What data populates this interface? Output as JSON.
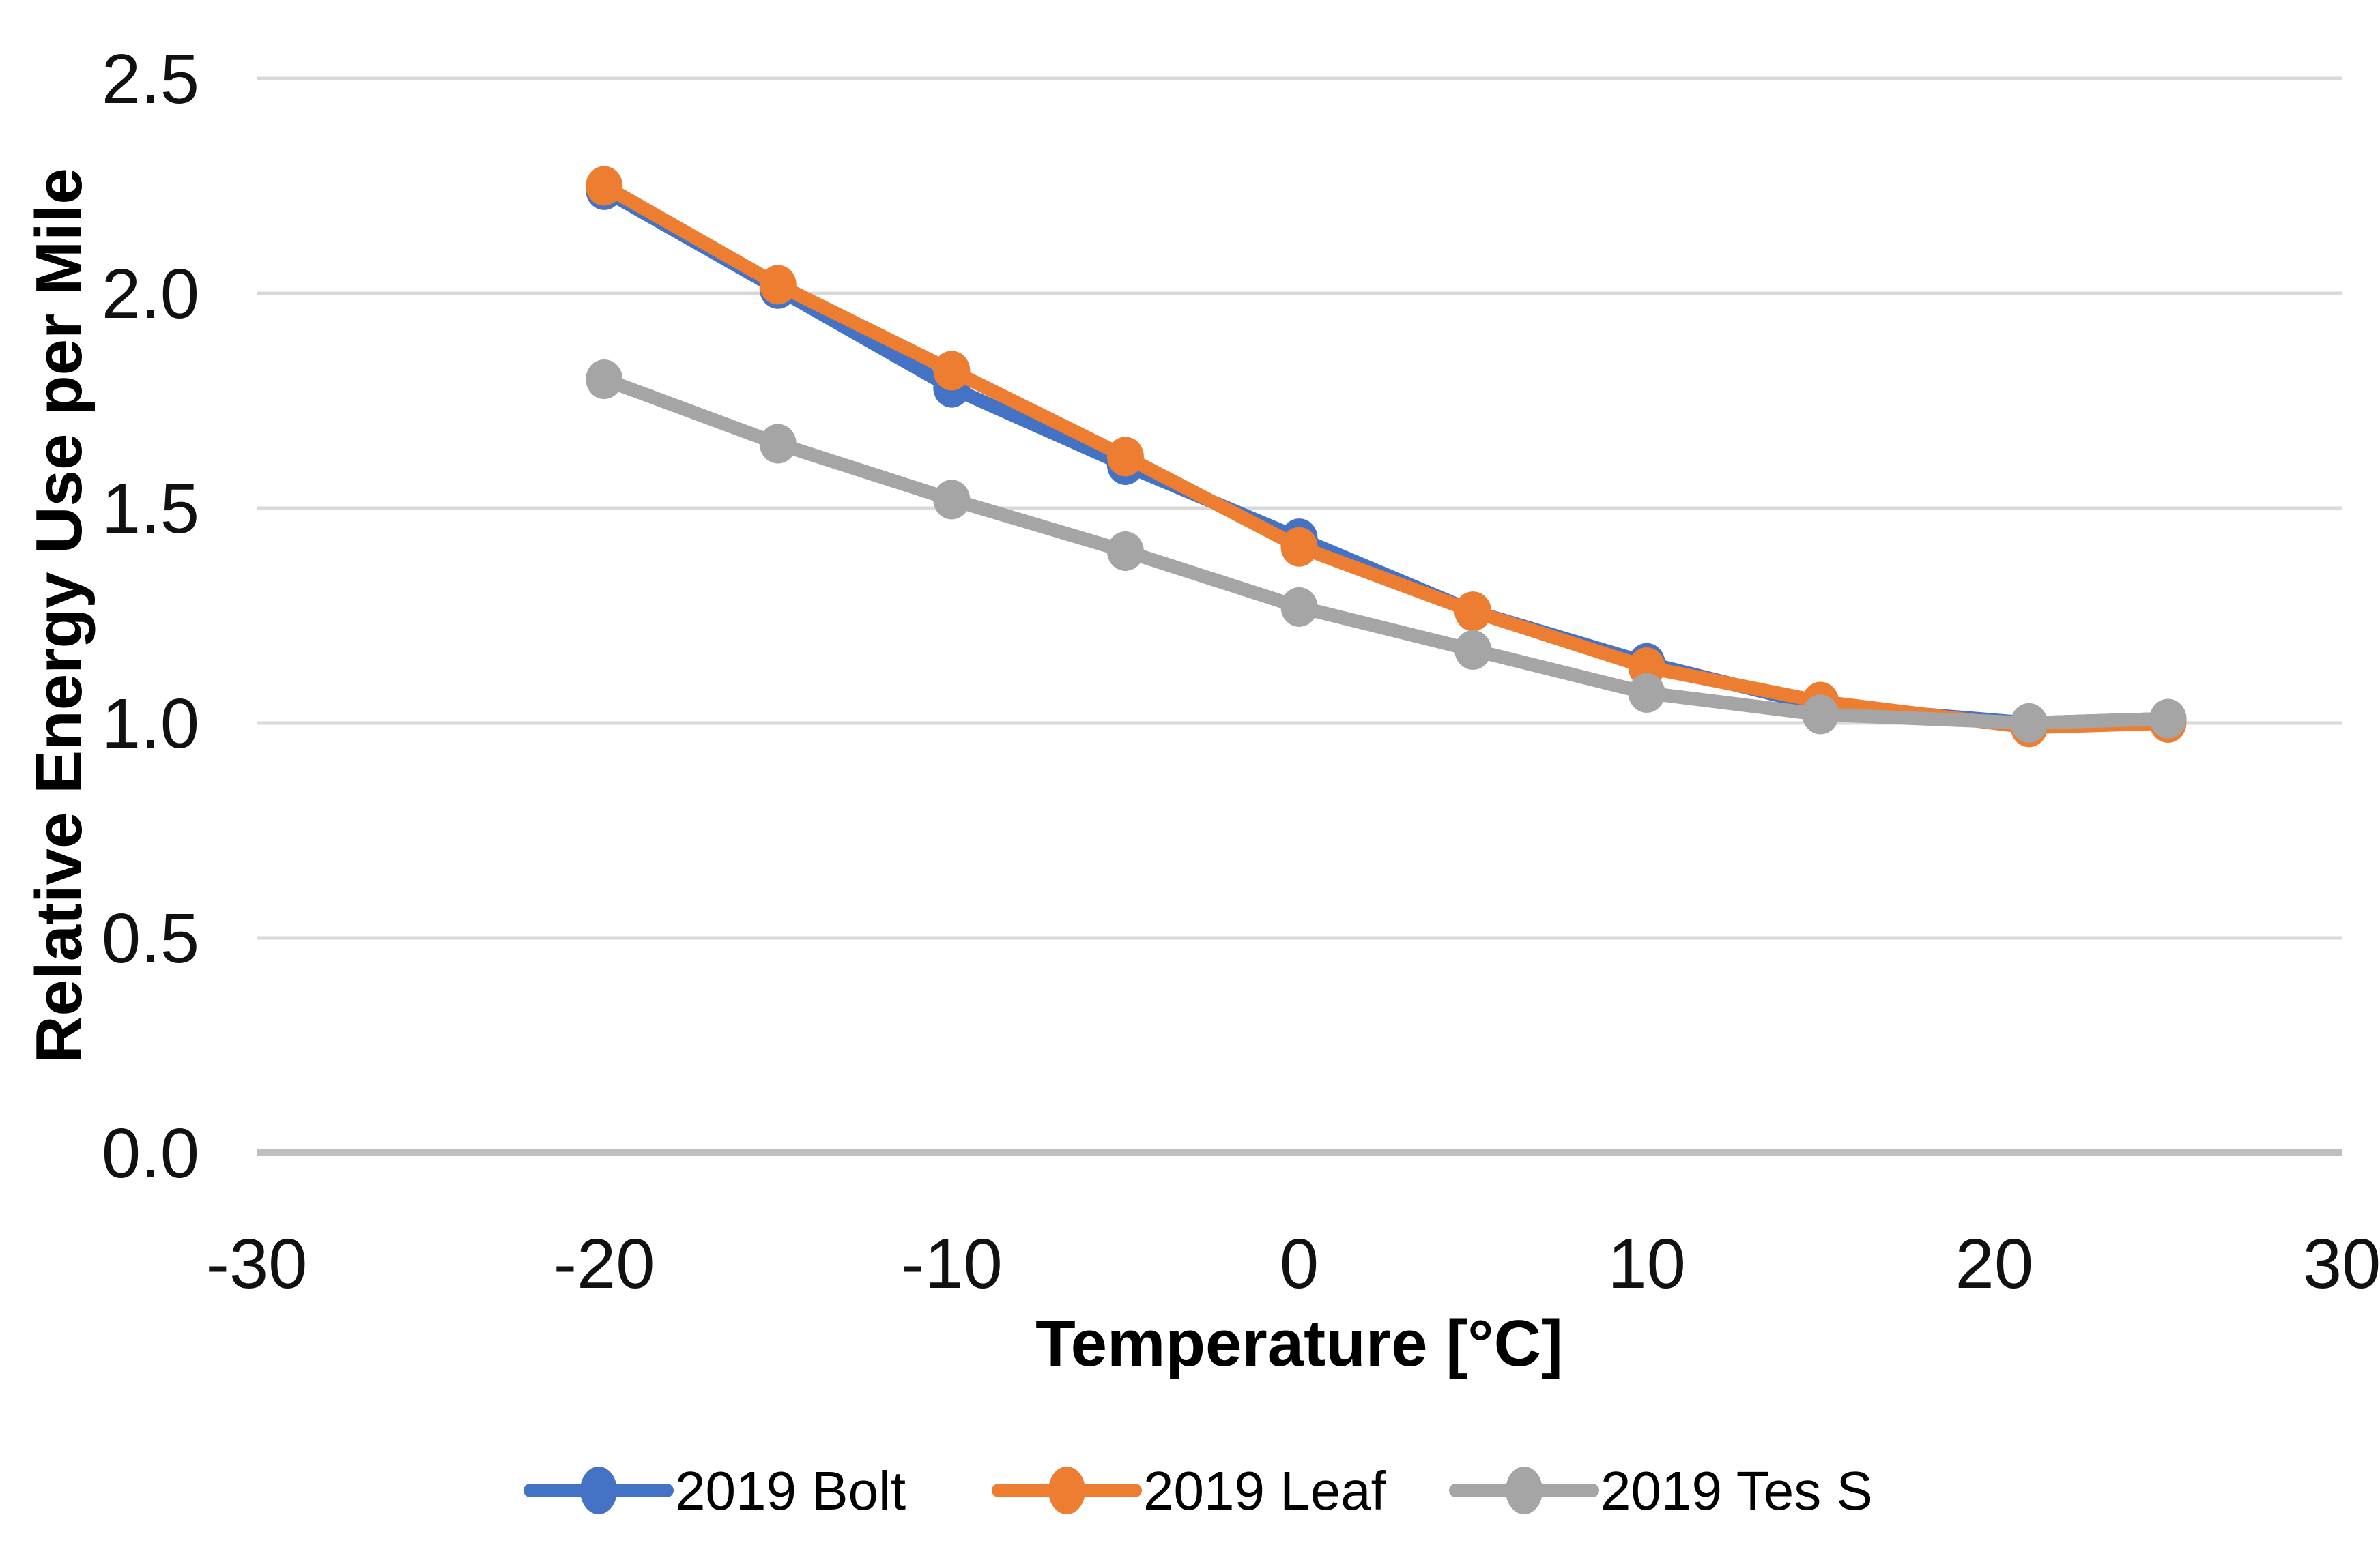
{
  "chart_data": {
    "type": "line",
    "title": "",
    "x": [
      -20,
      -15,
      -10,
      -5,
      0,
      5,
      10,
      15,
      21,
      25
    ],
    "series": [
      {
        "name": "2019 Bolt",
        "color": "#4472C4",
        "values": [
          2.24,
          2.01,
          1.78,
          1.6,
          1.43,
          1.26,
          1.14,
          1.04,
          1.0,
          1.01
        ]
      },
      {
        "name": "2019 Leaf",
        "color": "#ED7D31",
        "values": [
          2.25,
          2.02,
          1.82,
          1.62,
          1.41,
          1.26,
          1.13,
          1.05,
          0.99,
          1.0
        ]
      },
      {
        "name": "2019 Tes S",
        "color": "#A5A5A5",
        "values": [
          1.8,
          1.65,
          1.52,
          1.4,
          1.27,
          1.17,
          1.07,
          1.02,
          1.0,
          1.01
        ]
      }
    ],
    "xlabel": "Temperature [°C]",
    "ylabel": "Relative Energy Use per Mile",
    "xlim": [
      -30,
      30
    ],
    "ylim": [
      0,
      2.5
    ],
    "x_ticks": [
      -30,
      -20,
      -10,
      0,
      10,
      20,
      30
    ],
    "x_tick_labels": [
      "-30",
      "-20",
      "-10",
      "0",
      "10",
      "20",
      "30"
    ],
    "y_ticks": [
      0,
      0.5,
      1,
      1.5,
      2,
      2.5
    ],
    "y_tick_labels": [
      "0.0",
      "0.5",
      "1.0",
      "1.5",
      "2.0",
      "2.5"
    ],
    "grid": true,
    "legend_position": "bottom",
    "colors": {
      "gridline": "#D9D9D9",
      "axis_line": "#BFBFBF",
      "text": "#000000"
    }
  }
}
